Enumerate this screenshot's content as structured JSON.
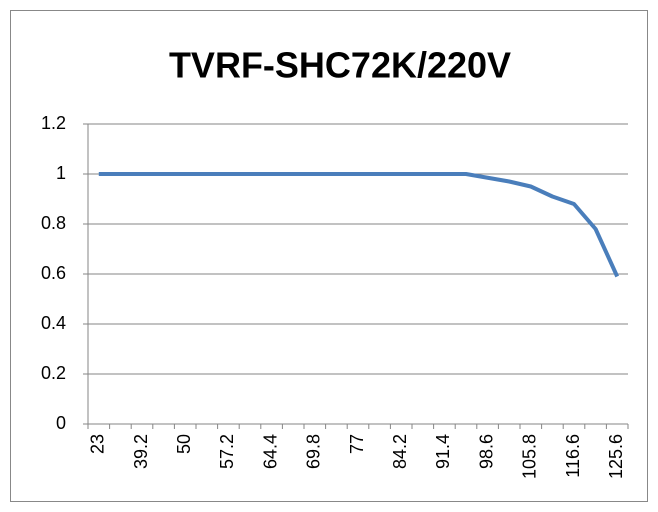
{
  "chart_data": {
    "type": "line",
    "title": "TVRF-SHC72K/220V",
    "categories": [
      "23",
      null,
      "39.2",
      null,
      "50",
      null,
      "57.2",
      null,
      "64.4",
      null,
      "69.8",
      null,
      "77",
      null,
      "84.2",
      null,
      "91.4",
      null,
      "98.6",
      null,
      "105.8",
      null,
      "116.6",
      null,
      "125.6"
    ],
    "values": [
      1,
      1,
      1,
      1,
      1,
      1,
      1,
      1,
      1,
      1,
      1,
      1,
      1,
      1,
      1,
      1,
      1,
      1,
      0.985,
      0.97,
      0.95,
      0.91,
      0.88,
      0.78,
      0.59
    ],
    "color": "#4a7ebb",
    "ylim": [
      0,
      1.2
    ],
    "yticks": [
      0,
      0.2,
      0.4,
      0.6,
      0.8,
      1,
      1.2
    ],
    "grid": true
  }
}
